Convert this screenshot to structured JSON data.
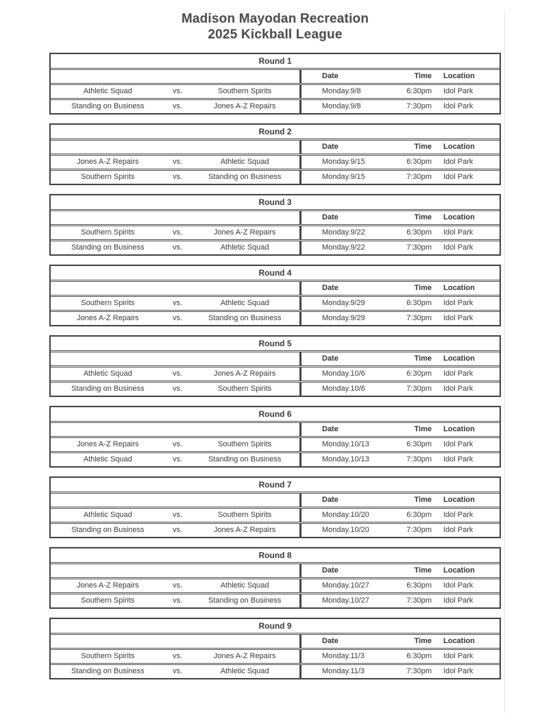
{
  "title": {
    "line1": "Madison Mayodan Recreation",
    "line2": "2025 Kickball League"
  },
  "labels": {
    "vs": "vs.",
    "date": "Date",
    "time": "Time",
    "location": "Location"
  },
  "rounds": [
    {
      "name": "Round 1",
      "games": [
        {
          "home": "Athletic Squad",
          "away": "Southern Spirits",
          "date": "Monday.9/8",
          "time": "6:30pm",
          "loc": "Idol Park"
        },
        {
          "home": "Standing on Business",
          "away": "Jones A-Z Repairs",
          "date": "Monday.9/8",
          "time": "7:30pm",
          "loc": "Idol Park"
        }
      ]
    },
    {
      "name": "Round 2",
      "games": [
        {
          "home": "Jones A-Z Repairs",
          "away": "Athletic Squad",
          "date": "Monday.9/15",
          "time": "6:30pm",
          "loc": "Idol Park"
        },
        {
          "home": "Southern Spirits",
          "away": "Standing on Business",
          "date": "Monday.9/15",
          "time": "7:30pm",
          "loc": "Idol Park"
        }
      ]
    },
    {
      "name": "Round 3",
      "games": [
        {
          "home": "Southern Spirits",
          "away": "Jones A-Z Repairs",
          "date": "Monday.9/22",
          "time": "6:30pm",
          "loc": "Idol Park"
        },
        {
          "home": "Standing on Business",
          "away": "Athletic Squad",
          "date": "Monday.9/22",
          "time": "7:30pm",
          "loc": "Idol Park"
        }
      ]
    },
    {
      "name": "Round 4",
      "games": [
        {
          "home": "Southern Spirits",
          "away": "Athletic Squad",
          "date": "Monday.9/29",
          "time": "6:30pm",
          "loc": "Idol Park"
        },
        {
          "home": "Jones A-Z Repairs",
          "away": "Standing on Business",
          "date": "Monday.9/29",
          "time": "7:30pm",
          "loc": "Idol Park"
        }
      ]
    },
    {
      "name": "Round 5",
      "games": [
        {
          "home": "Athletic Squad",
          "away": "Jones A-Z Repairs",
          "date": "Monday.10/6",
          "time": "6:30pm",
          "loc": "Idol Park"
        },
        {
          "home": "Standing on Business",
          "away": "Southern Spirits",
          "date": "Monday.10/6",
          "time": "7:30pm",
          "loc": "Idol Park"
        }
      ]
    },
    {
      "name": "Round 6",
      "games": [
        {
          "home": "Jones A-Z Repairs",
          "away": "Southern Spirits",
          "date": "Monday.10/13",
          "time": "6:30pm",
          "loc": "Idol Park"
        },
        {
          "home": "Athletic Squad",
          "away": "Standing on Business",
          "date": "Monday.10/13",
          "time": "7:30pm",
          "loc": "Idol Park"
        }
      ]
    },
    {
      "name": "Round 7",
      "games": [
        {
          "home": "Athletic Squad",
          "away": "Southern Spirits",
          "date": "Monday.10/20",
          "time": "6:30pm",
          "loc": "Idol Park"
        },
        {
          "home": "Standing on Business",
          "away": "Jones A-Z Repairs",
          "date": "Monday.10/20",
          "time": "7:30pm",
          "loc": "Idol Park"
        }
      ]
    },
    {
      "name": "Round 8",
      "games": [
        {
          "home": "Jones A-Z Repairs",
          "away": "Athletic Squad",
          "date": "Monday.10/27",
          "time": "6:30pm",
          "loc": "Idol Park"
        },
        {
          "home": "Southern Spirits",
          "away": "Standing on Business",
          "date": "Monday.10/27",
          "time": "7:30pm",
          "loc": "Idol Park"
        }
      ]
    },
    {
      "name": "Round 9",
      "games": [
        {
          "home": "Southern Spirits",
          "away": "Jones A-Z Repairs",
          "date": "Monday.11/3",
          "time": "6:30pm",
          "loc": "Idol Park"
        },
        {
          "home": "Standing on Business",
          "away": "Athletic Squad",
          "date": "Monday.11/3",
          "time": "7:30pm",
          "loc": "Idol Park"
        }
      ]
    }
  ]
}
